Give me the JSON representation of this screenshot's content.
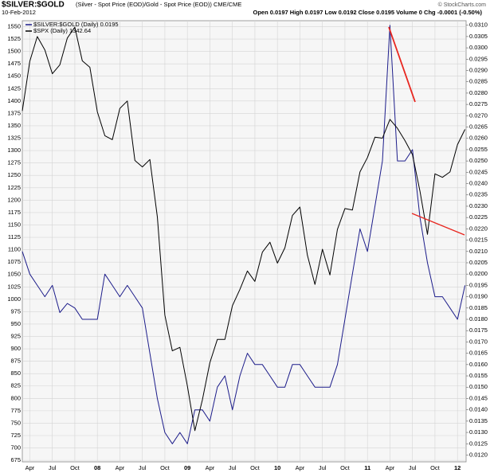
{
  "chart_data": {
    "type": "line",
    "title": "$SILVER:$GOLD",
    "subtitle": "(Silver - Spot Price (EOD)/Gold - Spot Price (EOD)) CME/CME",
    "date": "10-Feb-2012",
    "quote": "Open 0.0197  High 0.0197  Low 0.0192  Close 0.0195  Volume 0  Chg -0.0001 (-0.50%)",
    "source": "© StockCharts.com",
    "categories": [
      null,
      "Apr",
      null,
      null,
      "Jul",
      null,
      null,
      "Oct",
      null,
      null,
      "08",
      null,
      null,
      "Apr",
      null,
      null,
      "Jul",
      null,
      null,
      "Oct",
      null,
      null,
      "09",
      null,
      null,
      "Apr",
      null,
      null,
      "Jul",
      null,
      null,
      "Oct",
      null,
      null,
      "10",
      null,
      null,
      "Apr",
      null,
      null,
      "Jul",
      null,
      null,
      "Oct",
      null,
      null,
      "11",
      null,
      null,
      "Apr",
      null,
      null,
      "Jul",
      null,
      null,
      "Oct",
      null,
      null,
      "12",
      null
    ],
    "series": [
      {
        "name": "$SILVER:$GOLD (Daily) 0.0195",
        "color": "#1c1c8a",
        "axis": "y2",
        "values": [
          0.021,
          0.02,
          0.0195,
          0.019,
          0.0195,
          0.0183,
          0.0187,
          0.0185,
          0.018,
          0.018,
          0.018,
          0.02,
          0.0195,
          0.019,
          0.0195,
          0.019,
          0.0185,
          0.0165,
          0.0145,
          0.013,
          0.0125,
          0.013,
          0.0125,
          0.014,
          0.014,
          0.0135,
          0.015,
          0.0155,
          0.014,
          0.0155,
          0.0165,
          0.016,
          0.016,
          0.0155,
          0.015,
          0.015,
          0.016,
          0.016,
          0.0155,
          0.015,
          0.015,
          0.015,
          0.016,
          0.018,
          0.02,
          0.022,
          0.021,
          0.023,
          0.025,
          0.031,
          0.025,
          0.025,
          0.0255,
          0.0225,
          0.0205,
          0.019,
          0.019,
          0.0185,
          0.018,
          0.0195
        ]
      },
      {
        "name": "$SPX (Daily) 1342.64",
        "color": "#000000",
        "axis": "y",
        "values": [
          1380,
          1480,
          1530,
          1503,
          1455,
          1473,
          1527,
          1549,
          1481,
          1468,
          1378,
          1330,
          1322,
          1385,
          1400,
          1280,
          1267,
          1282,
          1166,
          968,
          896,
          903,
          825,
          735,
          797,
          872,
          919,
          919,
          987,
          1020,
          1057,
          1036,
          1095,
          1115,
          1073,
          1104,
          1169,
          1186,
          1089,
          1030,
          1101,
          1049,
          1141,
          1183,
          1180,
          1257,
          1286,
          1327,
          1325,
          1363,
          1345,
          1320,
          1292,
          1218,
          1131,
          1253,
          1246,
          1257,
          1312,
          1342.64
        ]
      }
    ],
    "ylim": [
      672,
      1562
    ],
    "yticks": [
      675,
      700,
      725,
      750,
      775,
      800,
      825,
      850,
      875,
      900,
      925,
      950,
      975,
      1000,
      1025,
      1050,
      1075,
      1100,
      1125,
      1150,
      1175,
      1200,
      1225,
      1250,
      1275,
      1300,
      1325,
      1350,
      1375,
      1400,
      1425,
      1450,
      1475,
      1500,
      1525,
      1550
    ],
    "y2lim": [
      0.0117,
      0.0312
    ],
    "y2ticks": [
      {
        "value": 0.012,
        "label": "0.0120"
      },
      {
        "value": 0.0125,
        "label": "0.0125"
      },
      {
        "value": 0.013,
        "label": "0.0130"
      },
      {
        "value": 0.0135,
        "label": "0.0135"
      },
      {
        "value": 0.014,
        "label": "0.0140"
      },
      {
        "value": 0.0145,
        "label": "0.0145"
      },
      {
        "value": 0.015,
        "label": "0.0150"
      },
      {
        "value": 0.0155,
        "label": "0.0155"
      },
      {
        "value": 0.016,
        "label": "0.0160"
      },
      {
        "value": 0.0165,
        "label": "0.0165"
      },
      {
        "value": 0.017,
        "label": "0.0170"
      },
      {
        "value": 0.0175,
        "label": "0.0175"
      },
      {
        "value": 0.018,
        "label": "0.0180"
      },
      {
        "value": 0.0185,
        "label": "0.0185"
      },
      {
        "value": 0.019,
        "label": "0.0190"
      },
      {
        "value": 0.0195,
        "label": "0.0195"
      },
      {
        "value": 0.02,
        "label": "0.0200"
      },
      {
        "value": 0.0205,
        "label": "0.0205"
      },
      {
        "value": 0.021,
        "label": "0.0210"
      },
      {
        "value": 0.0215,
        "label": "0.0215"
      },
      {
        "value": 0.022,
        "label": "0.0220"
      },
      {
        "value": 0.0225,
        "label": "0.0225"
      },
      {
        "value": 0.023,
        "label": "0.0230"
      },
      {
        "value": 0.0235,
        "label": "0.0235"
      },
      {
        "value": 0.024,
        "label": "0.0240"
      },
      {
        "value": 0.0245,
        "label": "0.0245"
      },
      {
        "value": 0.025,
        "label": "0.0250"
      },
      {
        "value": 0.0255,
        "label": "0.0255"
      },
      {
        "value": 0.026,
        "label": "0.0260"
      },
      {
        "value": 0.0265,
        "label": "0.0265"
      },
      {
        "value": 0.027,
        "label": "0.0270"
      },
      {
        "value": 0.0275,
        "label": "0.0275"
      },
      {
        "value": 0.028,
        "label": "0.0280"
      },
      {
        "value": 0.0285,
        "label": "0.0285"
      },
      {
        "value": 0.029,
        "label": "0.0290"
      },
      {
        "value": 0.0295,
        "label": "0.0295"
      },
      {
        "value": 0.03,
        "label": "0.0300"
      },
      {
        "value": 0.0305,
        "label": "0.0305"
      },
      {
        "value": 0.031,
        "label": "0.0310"
      }
    ],
    "grid": true
  }
}
